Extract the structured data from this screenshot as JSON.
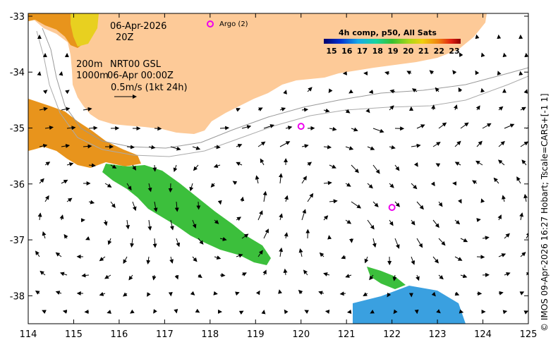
{
  "map": {
    "date_line": "06-Apr-2026",
    "time_line": "20Z",
    "contour_line_1": "200m",
    "contour_line_2": "1000m",
    "product": "NRT00 GSL",
    "product_time": "06-Apr 00:00Z",
    "vector_scale": "0.5m/s (1kt 24h)",
    "argo_label": "Argo (2)",
    "colorbar_title": "4h comp, p50, All Sats",
    "colorbar_ticks": [
      "15",
      "16",
      "17",
      "18",
      "19",
      "20",
      "21",
      "22",
      "23"
    ],
    "credit": "© IMOS 09-Apr-2026 16:27 Hobart; Tscale=CARS+[-1 1]",
    "x_ticks": [
      "114",
      "115",
      "116",
      "117",
      "118",
      "119",
      "120",
      "121",
      "122",
      "123",
      "124",
      "125"
    ],
    "y_ticks": [
      "-33",
      "-34",
      "-35",
      "-36",
      "-37",
      "-38"
    ],
    "argo_floats": [
      {
        "lon": 120.0,
        "lat": -34.97
      },
      {
        "lon": 122.0,
        "lat": -36.42
      }
    ],
    "colors": {
      "land": "#fdca98",
      "argo": "#ee00ee",
      "frame": "#000000",
      "sst_warm": "#e8941c",
      "sst_green": "#3cbf3c",
      "sst_cool": "#3aa0e0"
    }
  }
}
